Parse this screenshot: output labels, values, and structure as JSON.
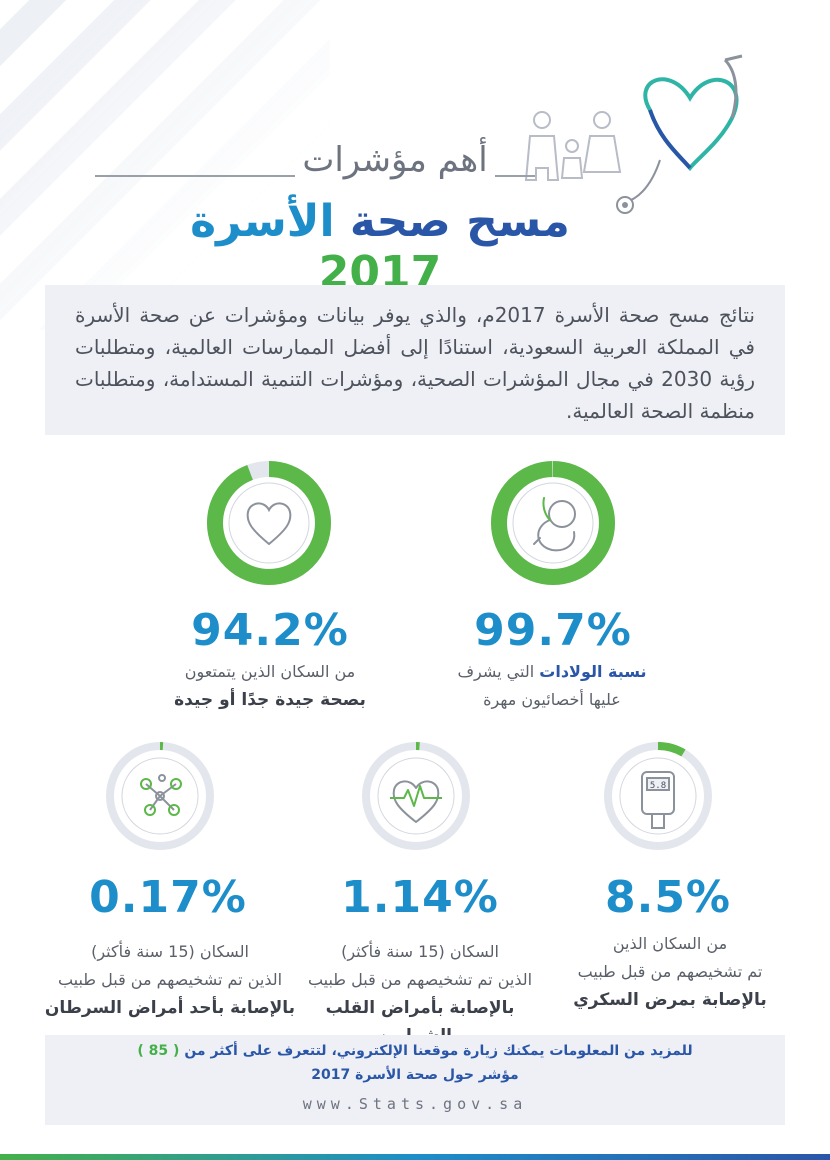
{
  "header": {
    "subtitle": "أهم مؤشرات",
    "title_word1": "مسح",
    "title_word2": "صحة",
    "title_word3": "الأسرة",
    "title_year": "2017"
  },
  "intro": "نتائج مسح صحة الأسرة 2017م، والذي يوفر بيانات ومؤشرات عن صحة الأسرة في المملكة العربية السعودية، استنادًا إلى أفضل الممارسات العالمية، ومتطلبات رؤية 2030 في مجال المؤشرات الصحية، ومؤشرات التنمية المستدامة، ومتطلبات منظمة الصحة العالمية.",
  "stats": {
    "births": {
      "value": "99.7%",
      "fraction": 0.997,
      "label_bold": "نسبة الولادات",
      "label_rest": "التي يشرف",
      "label_line2": "عليها أخصائيون مهرة",
      "icon": "fetus-icon"
    },
    "good_health": {
      "value": "94.2%",
      "fraction": 0.942,
      "label_line1": "من السكان الذين يتمتعون",
      "label_bold": "بصحة جيدة جدًا أو جيدة",
      "icon": "heart-icon"
    },
    "diabetes": {
      "value": "8.5%",
      "fraction": 0.085,
      "label_line1": "من السكان الذين",
      "label_line2": "تم تشخيصهم من قبل طبيب",
      "label_bold": "بالإصابة بمرض السكري",
      "meter_reading": "5.8",
      "icon": "glucose-meter-icon"
    },
    "heart": {
      "value": "1.14%",
      "fraction": 0.0114,
      "label_line1": "السكان (15 سنة فأكثر)",
      "label_line2": "الذين تم تشخيصهم من قبل طبيب",
      "label_bold": "بالإصابة بأمراض القلب والشرايين",
      "icon": "heartbeat-icon"
    },
    "cancer": {
      "value": "0.17%",
      "fraction": 0.0017,
      "label_line1": "السكان (15 سنة فأكثر)",
      "label_line2": "الذين تم تشخيصهم من قبل طبيب",
      "label_bold": "بالإصابة بأحد أمراض السرطان",
      "icon": "cells-icon"
    }
  },
  "footer": {
    "line1_text": "للمزيد من المعلومات يمكنك زيارة موقعنا الإلكتروني، لتتعرف على أكثر من",
    "line1_count": "( 85 )",
    "line2": "مؤشر حول صحة الأسرة 2017",
    "url": "www.Stats.gov.sa"
  },
  "colors": {
    "ring_green": "#5cb848",
    "ring_track": "#e3e6ec",
    "accent_blue": "#1d8ec9",
    "accent_navy": "#2a56a8"
  }
}
